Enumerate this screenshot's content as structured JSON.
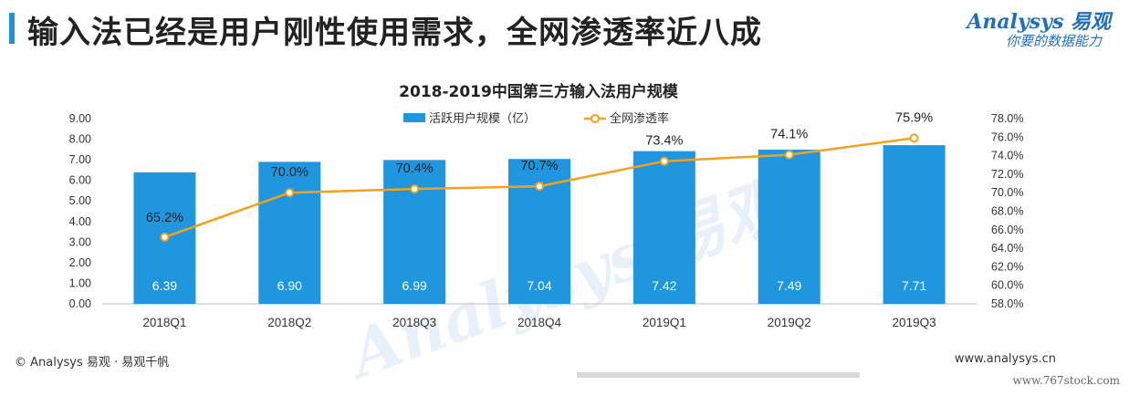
{
  "header": {
    "title": "输入法已经是用户刚性使用需求，全网渗透率近八成",
    "brand_logo": "Analysys 易观",
    "brand_tagline": "你要的数据能力"
  },
  "footer": {
    "copyright": "© Analysys 易观 · 易观千帆",
    "website": "www.analysys.cn",
    "site_mark": "www.767stock.com"
  },
  "watermark": "Analysys 易观",
  "colors": {
    "bar": "#1f96de",
    "line": "#f5a01a",
    "accent": "#1f8fd8"
  },
  "chart_data": {
    "type": "bar",
    "title": "2018-2019中国第三方输入法用户规模",
    "categories": [
      "2018Q1",
      "2018Q2",
      "2018Q3",
      "2018Q4",
      "2019Q1",
      "2019Q2",
      "2019Q3"
    ],
    "series": [
      {
        "name": "活跃用户规模（亿）",
        "type": "bar",
        "axis": "left",
        "values": [
          6.39,
          6.9,
          6.99,
          7.04,
          7.42,
          7.49,
          7.71
        ],
        "labels": [
          "6.39",
          "6.90",
          "6.99",
          "7.04",
          "7.42",
          "7.49",
          "7.71"
        ]
      },
      {
        "name": "全网渗透率",
        "type": "line",
        "axis": "right",
        "values": [
          65.2,
          70.0,
          70.4,
          70.7,
          73.4,
          74.1,
          75.9
        ],
        "labels": [
          "65.2%",
          "70.0%",
          "70.4%",
          "70.7%",
          "73.4%",
          "74.1%",
          "75.9%"
        ]
      }
    ],
    "y_left": {
      "lim": [
        0,
        9
      ],
      "ticks": [
        "0.00",
        "1.00",
        "2.00",
        "3.00",
        "4.00",
        "5.00",
        "6.00",
        "7.00",
        "8.00",
        "9.00"
      ]
    },
    "y_right": {
      "lim": [
        58,
        78
      ],
      "ticks": [
        "58.0%",
        "60.0%",
        "62.0%",
        "64.0%",
        "66.0%",
        "68.0%",
        "70.0%",
        "72.0%",
        "74.0%",
        "76.0%",
        "78.0%"
      ]
    },
    "legend": "top-center",
    "grid": false
  }
}
